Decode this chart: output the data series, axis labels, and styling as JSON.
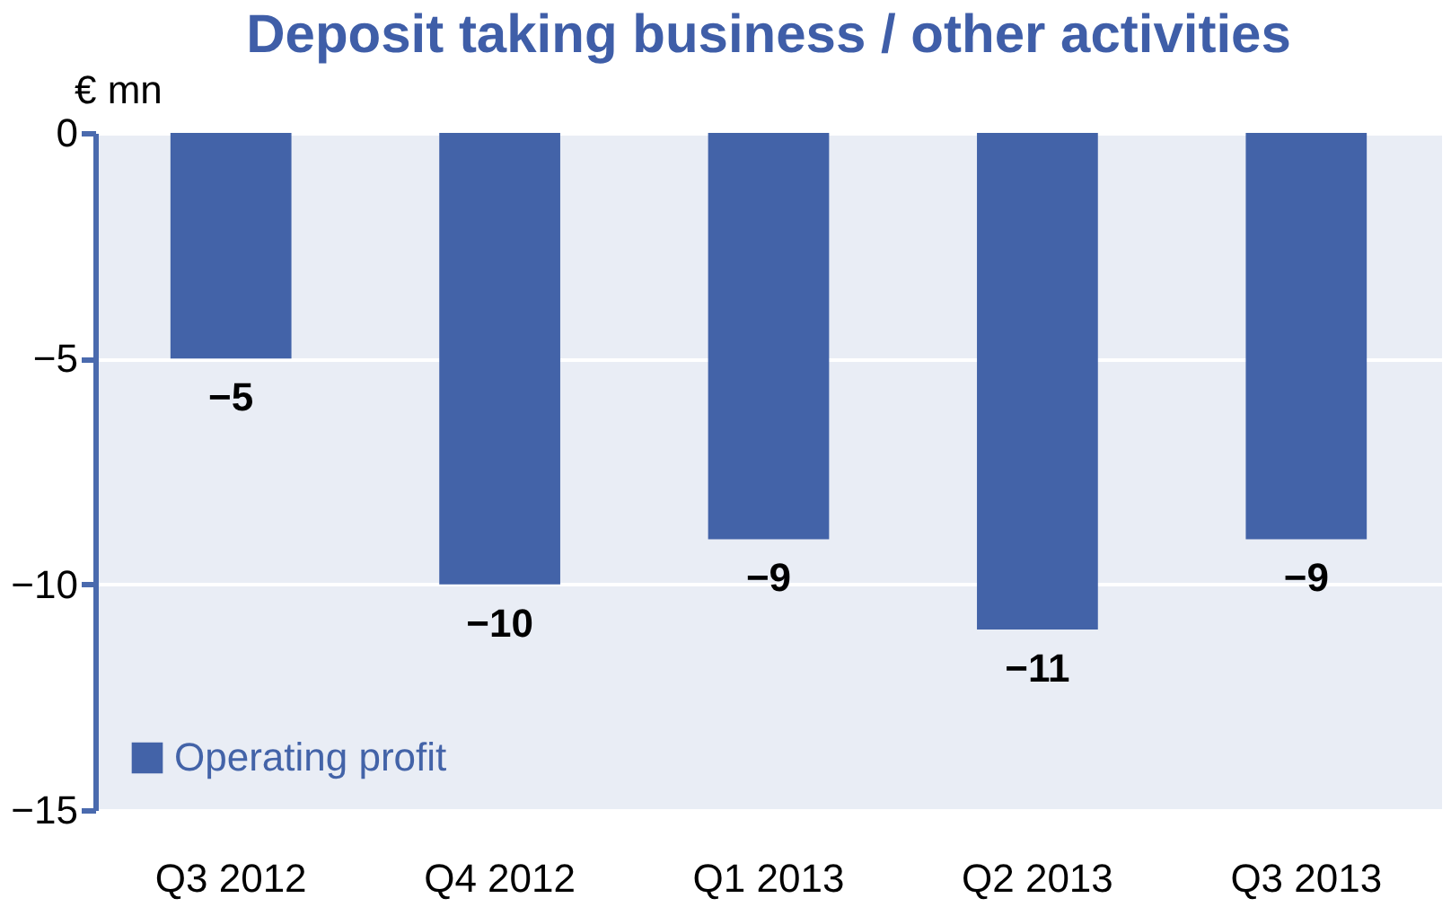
{
  "chart_data": {
    "type": "bar",
    "title": "Deposit taking business / other activities",
    "ylabel": "€ mn",
    "categories": [
      "Q3 2012",
      "Q4 2012",
      "Q1 2013",
      "Q2 2013",
      "Q3 2013"
    ],
    "series": [
      {
        "name": "Operating profit",
        "color": "#4363a8",
        "values": [
          -5,
          -10,
          -9,
          -11,
          -9
        ]
      }
    ],
    "ylim": [
      -15,
      0
    ],
    "yticks": [
      0,
      -5,
      -10,
      -15
    ],
    "grid": "y",
    "data_labels": true,
    "legend": "bottom left"
  }
}
